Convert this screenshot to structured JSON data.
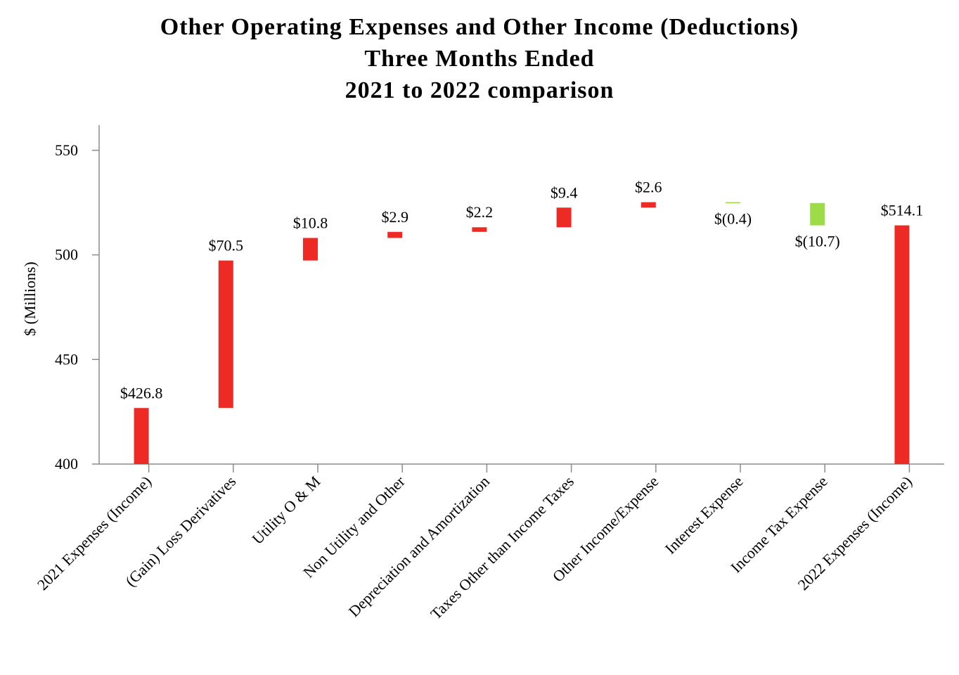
{
  "chart_data": {
    "type": "waterfall",
    "title": [
      "Other Operating Expenses and Other Income (Deductions)",
      "Three Months Ended",
      "2021 to 2022 comparison"
    ],
    "ylabel": "$ (Millions)",
    "xlabel": "",
    "ylim": [
      400,
      560
    ],
    "yticks": [
      400,
      450,
      500,
      550
    ],
    "grid": false,
    "colors": {
      "increase": "#ee2a24",
      "decrease": "#9ddc48",
      "total": "#ee2a24"
    },
    "steps": [
      {
        "category": "2021 Expenses (Income)",
        "value": 426.8,
        "kind": "total",
        "label": "$426.8"
      },
      {
        "category": "(Gain) Loss Derivatives",
        "value": 70.5,
        "kind": "increase",
        "label": "$70.5"
      },
      {
        "category": "Utility O & M",
        "value": 10.8,
        "kind": "increase",
        "label": "$10.8"
      },
      {
        "category": "Non Utility and Other",
        "value": 2.9,
        "kind": "increase",
        "label": "$2.9"
      },
      {
        "category": "Depreciation and Amortization",
        "value": 2.2,
        "kind": "increase",
        "label": "$2.2"
      },
      {
        "category": "Taxes Other than Income Taxes",
        "value": 9.4,
        "kind": "increase",
        "label": "$9.4"
      },
      {
        "category": "Other Income/Expense",
        "value": 2.6,
        "kind": "increase",
        "label": "$2.6"
      },
      {
        "category": "Interest Expense",
        "value": -0.4,
        "kind": "decrease",
        "label": "$(0.4)"
      },
      {
        "category": "Income Tax Expense",
        "value": -10.7,
        "kind": "decrease",
        "label": "$(10.7)"
      },
      {
        "category": "2022 Expenses (Income)",
        "value": 514.1,
        "kind": "total",
        "label": "$514.1"
      }
    ]
  }
}
